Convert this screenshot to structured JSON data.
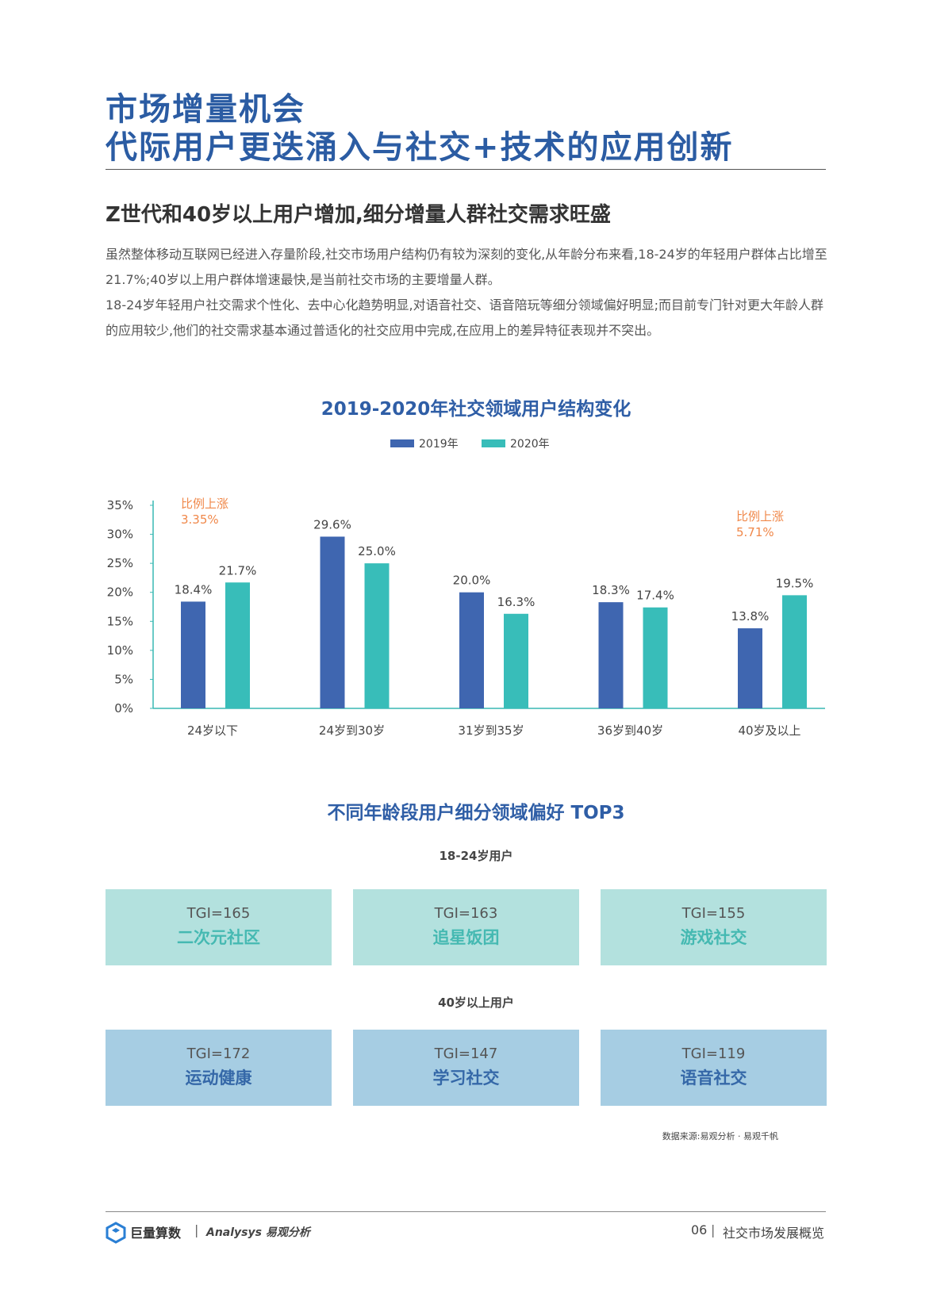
{
  "header": {
    "title_lines": [
      "市场增量机会",
      "代际用户更迭涌入与社交+技术的应用创新"
    ]
  },
  "section": {
    "heading": "Z世代和40岁以上用户增加,细分增量人群社交需求旺盛",
    "paragraphs": [
      "虽然整体移动互联网已经进入存量阶段,社交市场用户结构仍有较为深刻的变化,从年龄分布来看,18-24岁的年轻用户群体占比增至21.7%;40岁以上用户群体增速最快,是当前社交市场的主要增量人群。",
      "18-24岁年轻用户社交需求个性化、去中心化趋势明显,对语音社交、语音陪玩等细分领域偏好明显;而目前专门针对更大年龄人群的应用较少,他们的社交需求基本通过普适化的社交应用中完成,在应用上的差异特征表现并不突出。"
    ]
  },
  "chart_data": {
    "type": "bar",
    "title": "2019-2020年社交领域用户结构变化",
    "categories": [
      "24岁以下",
      "24岁到30岁",
      "31岁到35岁",
      "36岁到40岁",
      "40岁及以上"
    ],
    "series": [
      {
        "name": "2019年",
        "color": "#3f66b0",
        "values": [
          18.4,
          29.6,
          20.0,
          18.3,
          13.8
        ],
        "value_labels": [
          "18.4%",
          "29.6%",
          "20.0%",
          "18.3%",
          "13.8%"
        ]
      },
      {
        "name": "2020年",
        "color": "#38bdb9",
        "values": [
          21.7,
          25.0,
          16.3,
          17.4,
          19.5
        ],
        "value_labels": [
          "21.7%",
          "25.0%",
          "16.3%",
          "17.4%",
          "19.5%"
        ]
      }
    ],
    "ylim": [
      0,
      35
    ],
    "yticks": [
      {
        "value": 0,
        "label": "0%"
      },
      {
        "value": 5,
        "label": "5%"
      },
      {
        "value": 10,
        "label": "10%"
      },
      {
        "value": 15,
        "label": "15%"
      },
      {
        "value": 20,
        "label": "20%"
      },
      {
        "value": 25,
        "label": "25%"
      },
      {
        "value": 30,
        "label": "30%"
      },
      {
        "value": 35,
        "label": "35%"
      }
    ],
    "grid": false,
    "legend": "top",
    "annotations": [
      {
        "category": 0,
        "lines": [
          "比例上涨",
          "3.35%"
        ]
      },
      {
        "category": 4,
        "lines": [
          "比例上涨",
          "5.71%"
        ]
      }
    ]
  },
  "preferences": {
    "title": "不同年龄段用户细分领域偏好 TOP3",
    "groups": [
      {
        "label": "18-24岁用户",
        "items": [
          {
            "tgi": "TGI=165",
            "name": "二次元社区"
          },
          {
            "tgi": "TGI=163",
            "name": "追星饭团"
          },
          {
            "tgi": "TGI=155",
            "name": "游戏社交"
          }
        ]
      },
      {
        "label": "40岁以上用户",
        "items": [
          {
            "tgi": "TGI=172",
            "name": "运动健康"
          },
          {
            "tgi": "TGI=147",
            "name": "学习社交"
          },
          {
            "tgi": "TGI=119",
            "name": "语音社交"
          }
        ]
      }
    ],
    "source": "数据来源:易观分析 · 易观千帆"
  },
  "footer": {
    "brand": "巨量算数",
    "partner": "Analysys 易观分析",
    "page": "06",
    "section": "社交市场发展概览"
  }
}
